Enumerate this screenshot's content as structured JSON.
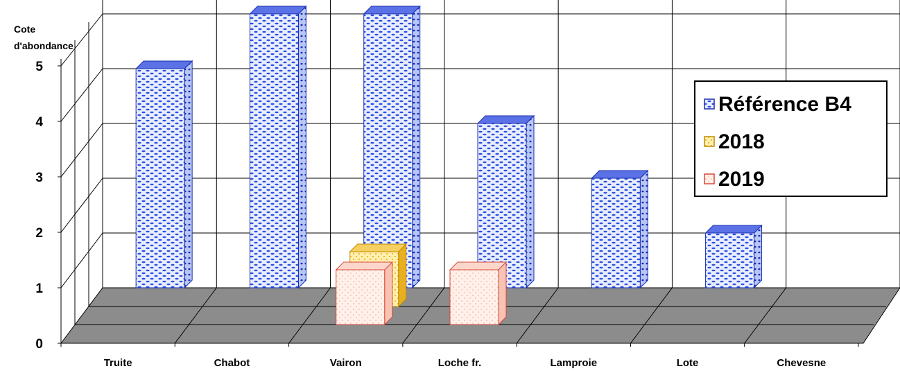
{
  "chart_data": {
    "type": "bar",
    "ylabel": "Cote d'abondance",
    "ylabel_lines": [
      "Cote",
      "d'abondance"
    ],
    "ylim": [
      0,
      5
    ],
    "yticks": [
      "0",
      "1",
      "2",
      "3",
      "4",
      "5"
    ],
    "grid": true,
    "legend_position": "right",
    "categories": [
      "Truite",
      "Chabot",
      "Vairon",
      "Loche fr.",
      "Lamproie",
      "Lote",
      "Chevesne"
    ],
    "series": [
      {
        "name": "Référence B4",
        "color": "#1a3ccc",
        "values": [
          4,
          5,
          5,
          3,
          2,
          1,
          0
        ]
      },
      {
        "name": "2018",
        "color": "#f2b51c",
        "values": [
          0,
          0,
          1,
          0,
          0,
          0,
          0
        ]
      },
      {
        "name": "2019",
        "color": "#e0554a",
        "values": [
          0,
          0,
          1,
          1,
          0,
          0,
          0
        ]
      }
    ]
  }
}
